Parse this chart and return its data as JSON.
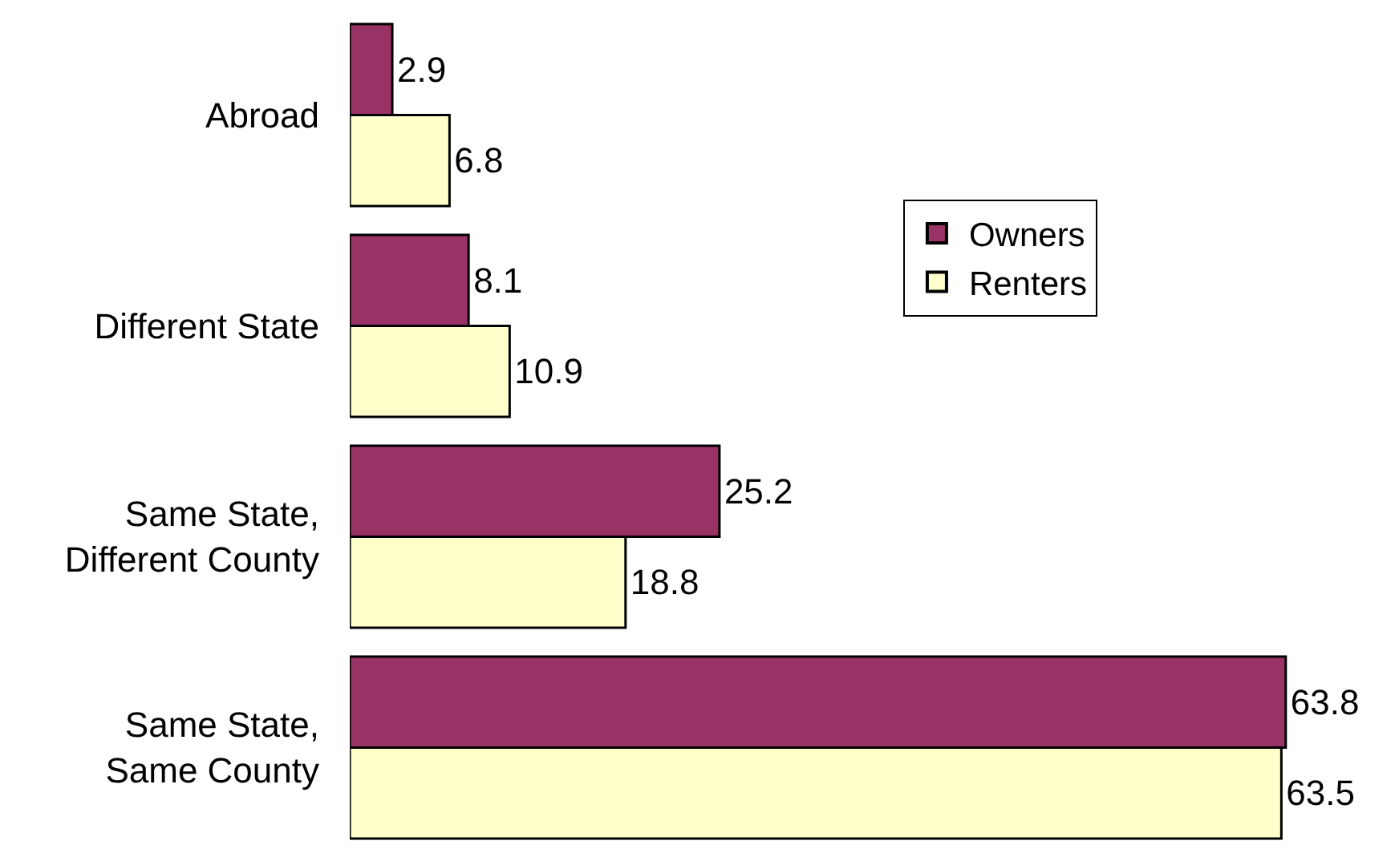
{
  "chart_data": {
    "type": "bar",
    "orientation": "horizontal",
    "categories": [
      "Abroad",
      "Different State",
      "Same State,\nDifferent County",
      "Same State,\nSame County"
    ],
    "series": [
      {
        "name": "Owners",
        "color": "#993366",
        "values": [
          2.9,
          8.1,
          25.2,
          63.8
        ]
      },
      {
        "name": "Renters",
        "color": "#ffffcc",
        "values": [
          6.8,
          10.9,
          18.8,
          63.5
        ]
      }
    ],
    "data_labels": true,
    "legend": "top right",
    "tick_labels": "y"
  }
}
